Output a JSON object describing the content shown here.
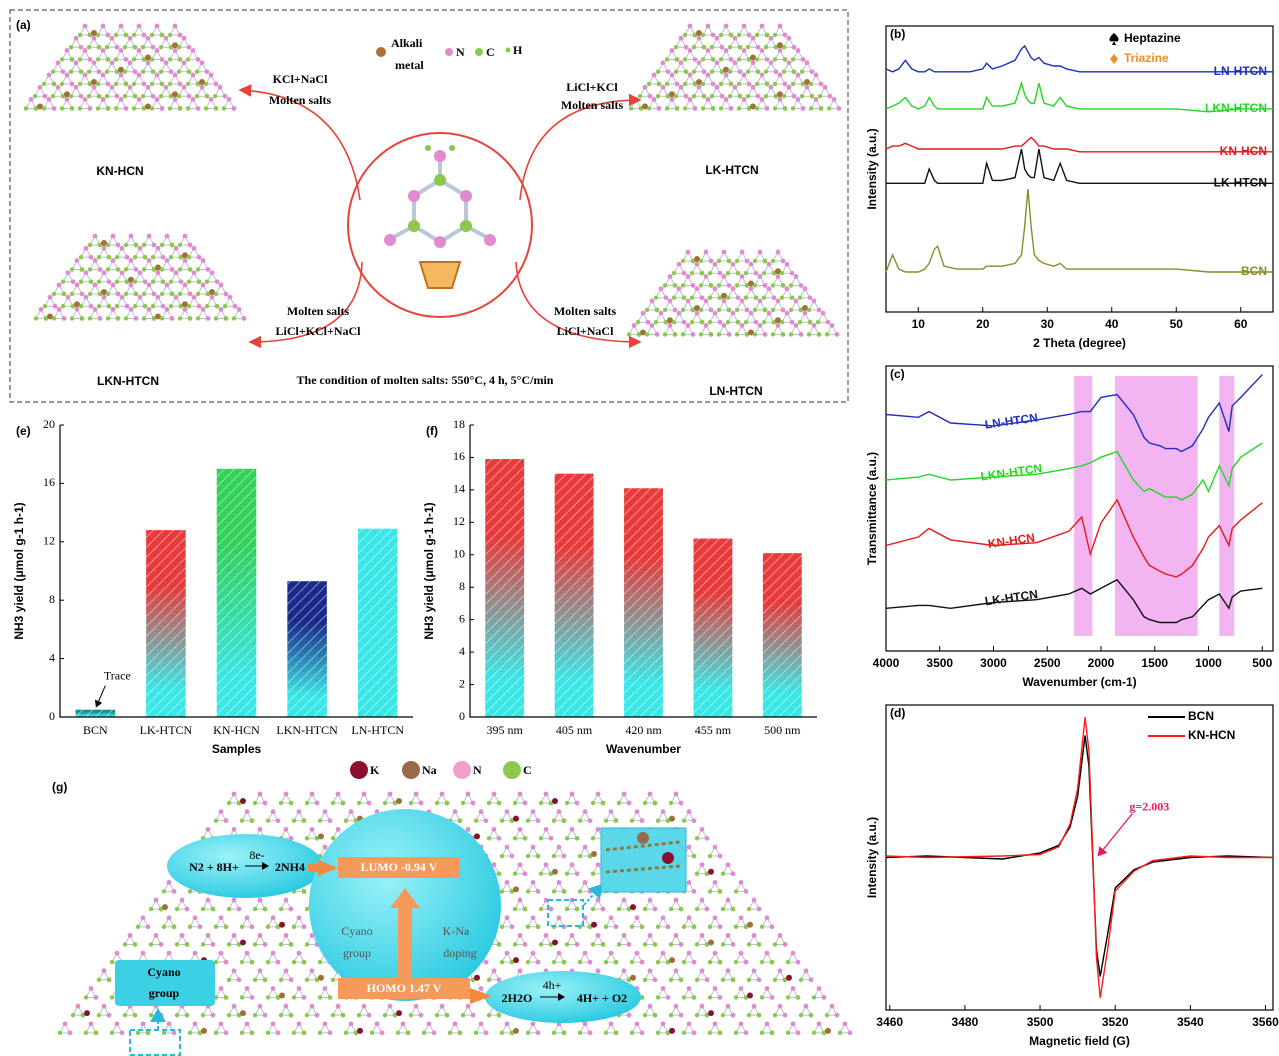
{
  "chart_data": [
    {
      "type": "line",
      "panel_label": "(b)",
      "xlabel": "2 Theta (degree)",
      "ylabel": "Intensity (a.u.)",
      "xlim": [
        5,
        65
      ],
      "xticks": [
        10,
        20,
        30,
        40,
        50,
        60
      ],
      "ylim": [
        0,
        100
      ],
      "legend": "inline-right",
      "peak_legend": [
        {
          "name": "Heptazine",
          "color": "#000000",
          "marker": "spade"
        },
        {
          "name": "Triazine",
          "color": "#f08c2c",
          "marker": "diamond"
        }
      ],
      "x": [
        5,
        6,
        7,
        8,
        9,
        10,
        11,
        11.7,
        12.5,
        13,
        14,
        16,
        18,
        20,
        20.6,
        21.5,
        23,
        25,
        26,
        26.5,
        27,
        27.5,
        28,
        28.7,
        29.5,
        31,
        32,
        33,
        35,
        40,
        45,
        50,
        55,
        60,
        65
      ],
      "series": [
        {
          "name": "LN-HTCN",
          "color": "#1f2fbf",
          "values": [
            85,
            84,
            85,
            88,
            85,
            84,
            84,
            85,
            84,
            84,
            84,
            84,
            84,
            85,
            87,
            85,
            86,
            88,
            92,
            93,
            91,
            89,
            88,
            89,
            87,
            86,
            86,
            85,
            84,
            84,
            84,
            84,
            84,
            84,
            84
          ]
        },
        {
          "name": "LKN-HTCN",
          "color": "#22d822",
          "values": [
            71,
            72,
            73,
            75,
            72,
            71,
            72,
            75,
            72,
            71,
            71,
            71,
            71,
            71,
            75,
            72,
            72,
            73,
            80,
            76,
            74,
            73,
            73,
            80,
            73,
            72,
            75,
            72,
            71,
            71,
            71,
            71,
            70,
            71,
            71
          ]
        },
        {
          "name": "KN-HCN",
          "color": "#e41a1a",
          "values": [
            57,
            58,
            58,
            59,
            58,
            57,
            57,
            57,
            57,
            57,
            57,
            57,
            57,
            57,
            57,
            57,
            57,
            58,
            58,
            59,
            60,
            61,
            60,
            58,
            58,
            57,
            57,
            57,
            56,
            56,
            56,
            56,
            56,
            56,
            56
          ]
        },
        {
          "name": "LK-HTCN",
          "color": "#111111",
          "values": [
            45,
            45,
            45,
            45,
            45,
            45,
            45,
            50,
            46,
            45,
            45,
            45,
            45,
            45,
            52,
            46,
            46,
            47,
            57,
            50,
            48,
            47,
            47,
            57,
            47,
            46,
            52,
            46,
            45,
            45,
            45,
            45,
            45,
            45,
            45
          ]
        },
        {
          "name": "BCN",
          "color": "#8b8b2a",
          "values": [
            14,
            20,
            15,
            14,
            14,
            14,
            15,
            17,
            22,
            23,
            16,
            15,
            15,
            15,
            16,
            16,
            16,
            17,
            20,
            30,
            43,
            30,
            20,
            18,
            17,
            16,
            17,
            15,
            15,
            15,
            15,
            15,
            14,
            14,
            14
          ]
        }
      ]
    },
    {
      "type": "line",
      "panel_label": "(c)",
      "xlabel": "Wavenumber (cm-1)",
      "ylabel": "Transmittance (a.u.)",
      "xlim": [
        4000,
        400
      ],
      "xticks": [
        4000,
        3500,
        3000,
        2500,
        2000,
        1500,
        1000,
        500
      ],
      "ylim": [
        0,
        100
      ],
      "legend": "inline-left",
      "bands": [
        [
          2250,
          2080
        ],
        [
          1870,
          1100
        ],
        [
          900,
          760
        ]
      ],
      "band_color": "#f0a8f0",
      "x": [
        4000,
        3700,
        3600,
        3400,
        3000,
        2600,
        2300,
        2180,
        2100,
        2000,
        1850,
        1700,
        1600,
        1550,
        1450,
        1400,
        1300,
        1250,
        1150,
        1050,
        1000,
        900,
        810,
        780,
        700,
        500
      ],
      "series": [
        {
          "name": "LN-HTCN",
          "color": "#1f2fbf",
          "values": [
            83,
            82,
            84,
            80,
            79,
            81,
            83,
            84,
            84,
            89,
            90,
            83,
            75,
            73,
            72,
            71,
            71,
            70,
            72,
            78,
            82,
            87,
            77,
            86,
            89,
            97
          ]
        },
        {
          "name": "LKN-HTCN",
          "color": "#22d822",
          "values": [
            60,
            61,
            62,
            60,
            61,
            62,
            64,
            65,
            66,
            68,
            70,
            60,
            56,
            57,
            55,
            54,
            54,
            53,
            55,
            60,
            56,
            65,
            58,
            64,
            68,
            73
          ]
        },
        {
          "name": "KN-HCN",
          "color": "#e41a1a",
          "values": [
            37,
            40,
            43,
            39,
            37,
            38,
            42,
            47,
            34,
            45,
            53,
            40,
            33,
            30,
            28,
            27,
            26,
            27,
            30,
            36,
            40,
            44,
            37,
            43,
            46,
            52
          ]
        },
        {
          "name": "LK-HTCN",
          "color": "#111111",
          "values": [
            15,
            16,
            16,
            15,
            17,
            18,
            20,
            22,
            20,
            22,
            25,
            18,
            12,
            11,
            10,
            10,
            10,
            11,
            12,
            16,
            18,
            20,
            15,
            19,
            21,
            22
          ]
        }
      ]
    },
    {
      "type": "line",
      "panel_label": "(d)",
      "xlabel": "Magnetic field (G)",
      "ylabel": "Intensity (a.u.)",
      "xlim": [
        3459,
        3562
      ],
      "xticks": [
        3460,
        3480,
        3500,
        3520,
        3540,
        3560
      ],
      "ylim": [
        -100,
        100
      ],
      "legend": "upper right",
      "annotations": [
        {
          "text": "g=2.003",
          "x": 3515,
          "y": 0,
          "color": "#e8195a"
        }
      ],
      "x": [
        3459,
        3470,
        3490,
        3500,
        3505,
        3508,
        3510,
        3512,
        3513,
        3514,
        3515,
        3516,
        3518,
        3520,
        3525,
        3530,
        3540,
        3550,
        3562
      ],
      "series": [
        {
          "name": "BCN",
          "color": "#000000",
          "values": [
            0,
            1,
            -1,
            3,
            8,
            20,
            40,
            80,
            60,
            0,
            -60,
            -78,
            -50,
            -20,
            -8,
            -3,
            0,
            1,
            0
          ]
        },
        {
          "name": "KN-HCN",
          "color": "#ff1a1a",
          "values": [
            1,
            0,
            1,
            2,
            7,
            22,
            45,
            92,
            70,
            5,
            -65,
            -92,
            -60,
            -22,
            -9,
            -2,
            1,
            0,
            0
          ]
        }
      ]
    },
    {
      "type": "bar",
      "panel_label": "(e)",
      "xlabel": "Samples",
      "ylabel": "NH3 yield (μmol g-1 h-1)",
      "categories": [
        "BCN",
        "LK-HTCN",
        "KN-HCN",
        "LKN-HTCN",
        "LN-HTCN"
      ],
      "values": [
        0.5,
        12.8,
        17.0,
        9.3,
        12.9
      ],
      "colors": [
        "#1b8c8c",
        "#e83a3a",
        "#33d05a",
        "#1a2a8a",
        "#3ae6e6"
      ],
      "gradient_end": "#3ae6e6",
      "hatch": true,
      "ylim": [
        0,
        20
      ],
      "yticks": [
        0,
        4,
        8,
        12,
        16,
        20
      ],
      "annotations": [
        {
          "text": "Trace",
          "x": "BCN"
        }
      ]
    },
    {
      "type": "bar",
      "panel_label": "(f)",
      "xlabel": "Wavenumber",
      "ylabel": "NH3 yield (μmol g-1 h-1)",
      "categories": [
        "395 nm",
        "405 nm",
        "420 nm",
        "455 nm",
        "500 nm"
      ],
      "values": [
        15.9,
        15.0,
        14.1,
        11.0,
        10.1
      ],
      "colors": [
        "#e83a3a",
        "#e83a3a",
        "#e83a3a",
        "#e83a3a",
        "#e83a3a"
      ],
      "gradient_end": "#3ae6e6",
      "hatch": true,
      "ylim": [
        0,
        18
      ],
      "yticks": [
        0,
        2,
        4,
        6,
        8,
        10,
        12,
        14,
        16,
        18
      ]
    }
  ],
  "diagram_a": {
    "label": "(a)",
    "legend": {
      "alkali": [
        "Alkali",
        "metal"
      ],
      "n": "N",
      "c": "C",
      "h": "H"
    },
    "routes": [
      {
        "top": "KCl+NaCl",
        "bottom": "Molten salts",
        "product": "KN-HCN"
      },
      {
        "top": "LiCl+KCl",
        "bottom": "Molten salts",
        "product": "LK-HTCN"
      },
      {
        "top": "Molten salts",
        "bottom": "LiCl+KCl+NaCl",
        "product": "LKN-HTCN"
      },
      {
        "top": "Molten salts",
        "bottom": "LiCl+NaCl",
        "product": "LN-HTCN"
      }
    ],
    "condition": "The condition of molten salts: 550°C, 4 h, 5°C/min"
  },
  "diagram_g": {
    "label": "(g)",
    "legend": [
      "K",
      "Na",
      "N",
      "C"
    ],
    "reduction": {
      "reactants": "N2 + 8H+",
      "electrons": "8e-",
      "products": "2NH4"
    },
    "lumo": "LUMO  -0.94 V",
    "homo": "HOMO 1.47 V",
    "left_effect": [
      "Cyano",
      "group"
    ],
    "right_effect": [
      "K-Na",
      "doping"
    ],
    "oxidation": {
      "reactants": "2H2O",
      "holes": "4h+",
      "products": "4H+ + O2"
    },
    "inset_label": [
      "Cyano",
      "group"
    ]
  }
}
